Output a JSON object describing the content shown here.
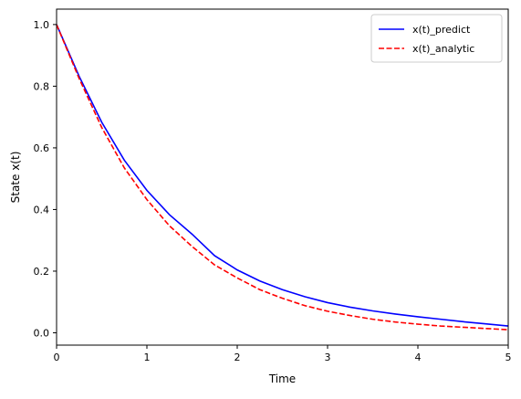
{
  "chart_data": {
    "type": "line",
    "xlabel": "Time",
    "ylabel": "State x(t)",
    "xlim": [
      0,
      5
    ],
    "ylim": [
      -0.04,
      1.05
    ],
    "xticks": [
      0,
      1,
      2,
      3,
      4,
      5
    ],
    "yticks": [
      0.0,
      0.2,
      0.4,
      0.6,
      0.8,
      1.0
    ],
    "xtick_labels": [
      "0",
      "1",
      "2",
      "3",
      "4",
      "5"
    ],
    "ytick_labels": [
      "0.0",
      "0.2",
      "0.4",
      "0.6",
      "0.8",
      "1.0"
    ],
    "grid": false,
    "legend_position": "upper right",
    "x": [
      0,
      0.25,
      0.5,
      0.75,
      1.0,
      1.25,
      1.5,
      1.75,
      2.0,
      2.25,
      2.5,
      2.75,
      3.0,
      3.25,
      3.5,
      3.75,
      4.0,
      4.25,
      4.5,
      4.75,
      5.0
    ],
    "series": [
      {
        "name": "x(t)_predict",
        "color": "#0000ff",
        "style": "solid",
        "values": [
          1.0,
          0.832,
          0.683,
          0.56,
          0.462,
          0.383,
          0.32,
          0.25,
          0.204,
          0.168,
          0.14,
          0.117,
          0.098,
          0.083,
          0.071,
          0.061,
          0.052,
          0.044,
          0.036,
          0.029,
          0.022
        ]
      },
      {
        "name": "x(t)_analytic",
        "color": "#ff0000",
        "style": "dashed",
        "values": [
          1.0,
          0.825,
          0.666,
          0.535,
          0.432,
          0.347,
          0.28,
          0.22,
          0.178,
          0.14,
          0.112,
          0.088,
          0.07,
          0.056,
          0.044,
          0.035,
          0.028,
          0.022,
          0.018,
          0.014,
          0.01
        ]
      }
    ]
  }
}
